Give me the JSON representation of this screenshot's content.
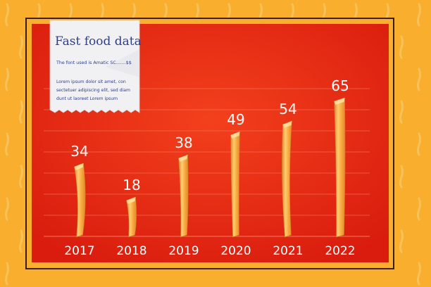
{
  "colors": {
    "background": "#f9ae2e",
    "frame": "#3a1e10",
    "panel": "#e02210",
    "panel_center": "#f0361a",
    "fry": "#f7a33a",
    "fry_light": "#ffd17a",
    "fry_dark": "#d9822a",
    "label": "#ffffff",
    "note_paper": "#f1f1f3",
    "note_text": "#2d3e8c"
  },
  "note": {
    "title": "Fast food data",
    "subtitle": "The font used is Amatic SC.......$$",
    "body_lines": [
      "Lorem ipsum dolor sit amet, con",
      "sectetuer adipiscing elit, sed diam",
      "dunt ut laoreet Lorem ipsum"
    ]
  },
  "chart_data": {
    "type": "bar",
    "title": "",
    "xlabel": "",
    "ylabel": "",
    "categories": [
      "2017",
      "2018",
      "2019",
      "2020",
      "2021",
      "2022"
    ],
    "values": [
      34,
      18,
      38,
      49,
      54,
      65
    ],
    "value_labels": [
      "34",
      "18",
      "38",
      "49",
      "54",
      "65"
    ],
    "ylim": [
      0,
      70
    ],
    "grid": true,
    "legend": "none",
    "bar_style": "french-fry"
  }
}
